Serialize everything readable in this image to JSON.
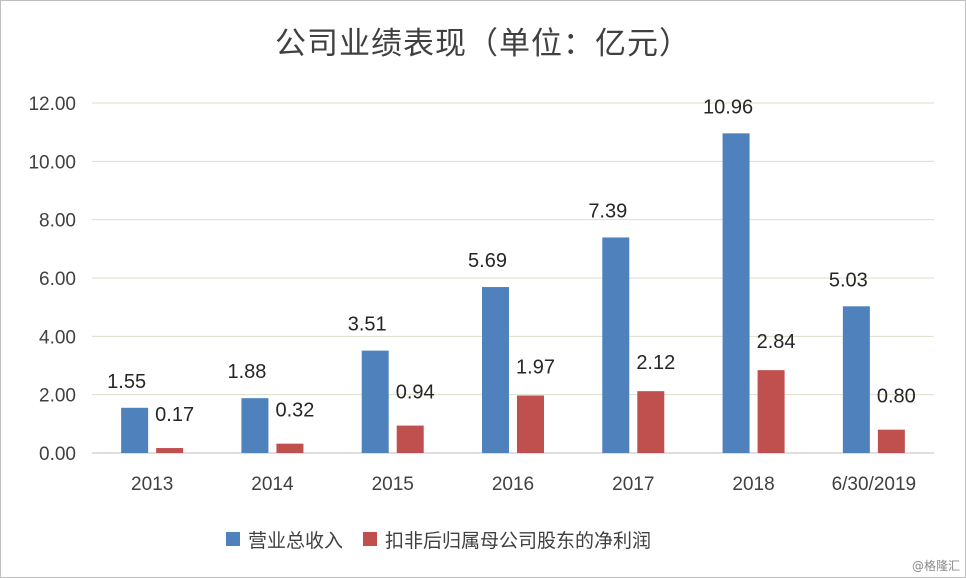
{
  "chart_data": {
    "type": "bar",
    "title": "公司业绩表现（单位：亿元）",
    "categories": [
      "2013",
      "2014",
      "2015",
      "2016",
      "2017",
      "2018",
      "6/30/2019"
    ],
    "series": [
      {
        "name": "营业总收入",
        "color": "#4f81bd",
        "values": [
          1.55,
          1.88,
          3.51,
          5.69,
          7.39,
          10.96,
          5.03
        ],
        "labels": [
          "1.55",
          "1.88",
          "3.51",
          "5.69",
          "7.39",
          "10.96",
          "5.03"
        ]
      },
      {
        "name": "扣非后归属母公司股东的净利润",
        "color": "#c0504d",
        "values": [
          0.17,
          0.32,
          0.94,
          1.97,
          2.12,
          2.84,
          0.8
        ],
        "labels": [
          "0.17",
          "0.32",
          "0.94",
          "1.97",
          "2.12",
          "2.84",
          "0.80"
        ]
      }
    ],
    "ylim": [
      0,
      12
    ],
    "yticks": [
      "0.00",
      "2.00",
      "4.00",
      "6.00",
      "8.00",
      "10.00",
      "12.00"
    ],
    "grid": true,
    "legend_position": "bottom",
    "gridline_color": "#d9e0c8"
  },
  "watermark": "@格隆汇"
}
